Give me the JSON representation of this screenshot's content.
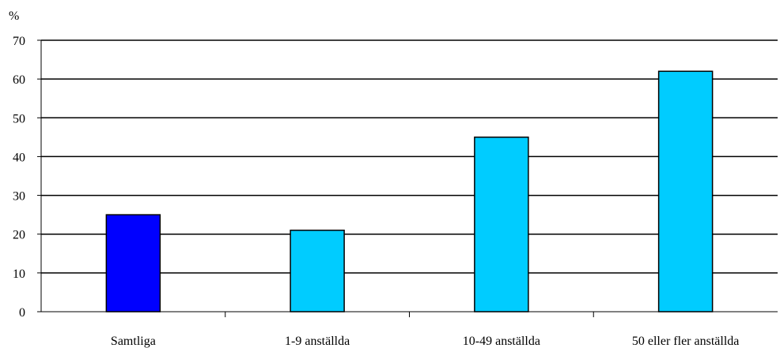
{
  "chart_data": {
    "type": "bar",
    "unit_label": "%",
    "categories": [
      "Samtliga",
      "1-9 anställda",
      "10-49 anställda",
      "50 eller fler anställda"
    ],
    "values": [
      25,
      21,
      45,
      62
    ],
    "bar_colors": [
      "#0000ff",
      "#00ccff",
      "#00ccff",
      "#00ccff"
    ],
    "ylim": [
      0,
      70
    ],
    "yticks": [
      0,
      10,
      20,
      30,
      40,
      50,
      60,
      70
    ],
    "grid": true,
    "legend": "none"
  }
}
